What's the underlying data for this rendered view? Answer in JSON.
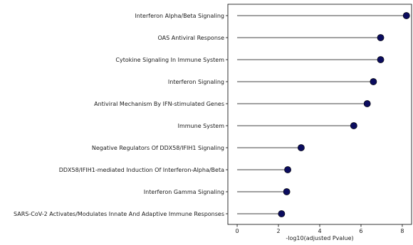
{
  "chart_data": {
    "type": "lollipop",
    "xlabel": "-log10(adjusted Pvalue)",
    "ylabel": "",
    "xlim": [
      -0.45,
      8.45
    ],
    "xticks": [
      0,
      2,
      4,
      6,
      8
    ],
    "grid": false,
    "colors": {
      "marker": "#0b0c5e",
      "stem": "#808080",
      "axis": "#000000"
    },
    "categories": [
      "Interferon Alpha/Beta Signaling",
      "OAS Antiviral Response",
      "Cytokine Signaling In Immune System",
      "Interferon Signaling",
      "Antiviral Mechanism By IFN-stimulated Genes",
      "Immune System",
      "Negative Regulators Of DDX58/IFIH1 Signaling",
      "DDX58/IFIH1-mediated Induction Of Interferon-Alpha/Beta",
      "Interferon Gamma Signaling",
      "SARS-CoV-2 Activates/Modulates Innate And Adaptive Immune Responses"
    ],
    "values": [
      8.2,
      6.95,
      6.95,
      6.6,
      6.3,
      5.65,
      3.1,
      2.45,
      2.4,
      2.15
    ]
  }
}
